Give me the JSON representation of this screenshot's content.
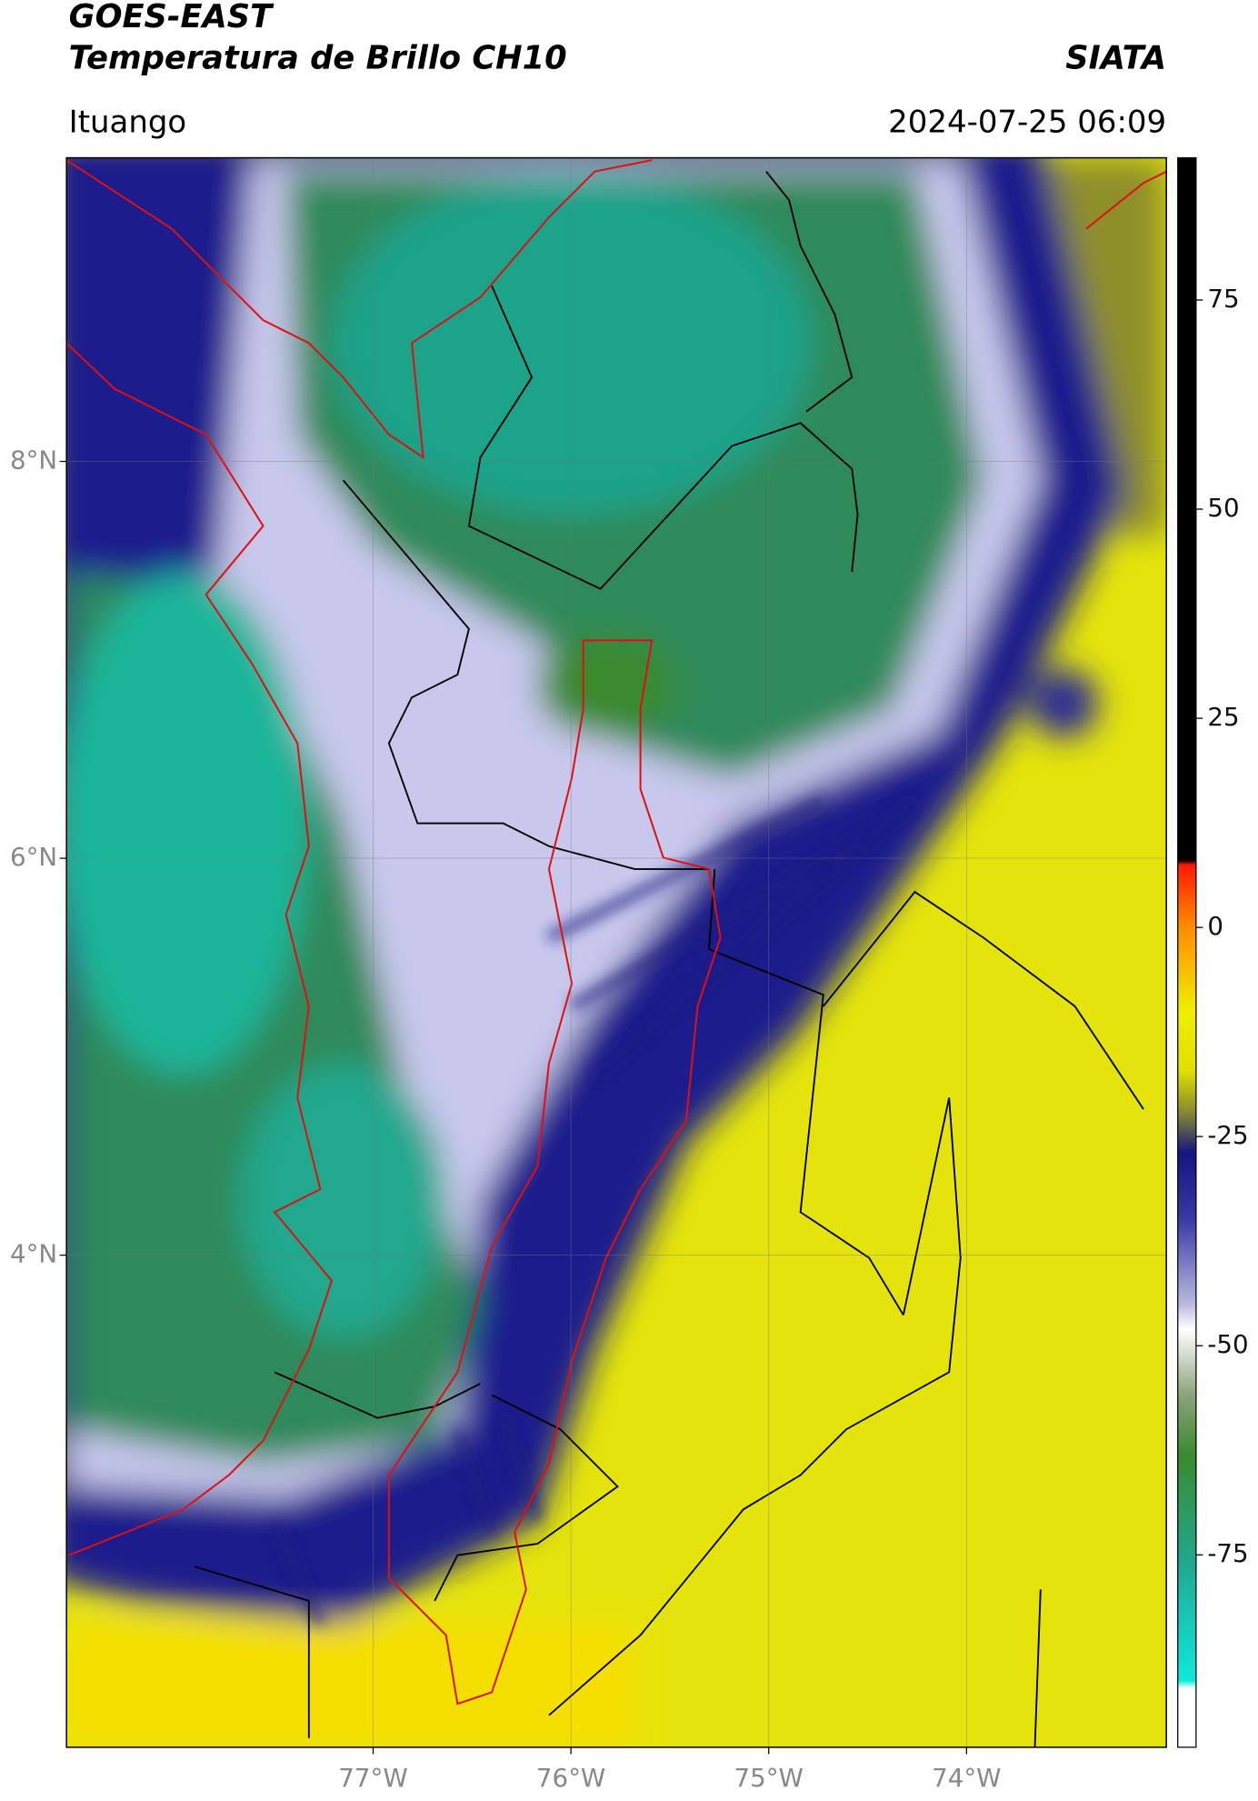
{
  "header": {
    "title": "GOES-EAST",
    "subtitle": "Temperatura de Brillo CH10",
    "source": "SIATA",
    "location": "Ituango",
    "datetime": "2024-07-25 06:09"
  },
  "map": {
    "xlim": [
      -78.55,
      -72.99
    ],
    "ylim": [
      1.52,
      9.53
    ],
    "xticks": [
      {
        "value": -77,
        "label": "77°W"
      },
      {
        "value": -76,
        "label": "76°W"
      },
      {
        "value": -75,
        "label": "75°W"
      },
      {
        "value": -74,
        "label": "74°W"
      }
    ],
    "yticks": [
      {
        "value": 8,
        "label": "8°N"
      },
      {
        "value": 6,
        "label": "6°N"
      },
      {
        "value": 4,
        "label": "4°N"
      }
    ]
  },
  "colorbar": {
    "lim": [
      -98,
      92
    ],
    "ticks": [
      75,
      50,
      25,
      0,
      -25,
      -50,
      -75
    ]
  }
}
